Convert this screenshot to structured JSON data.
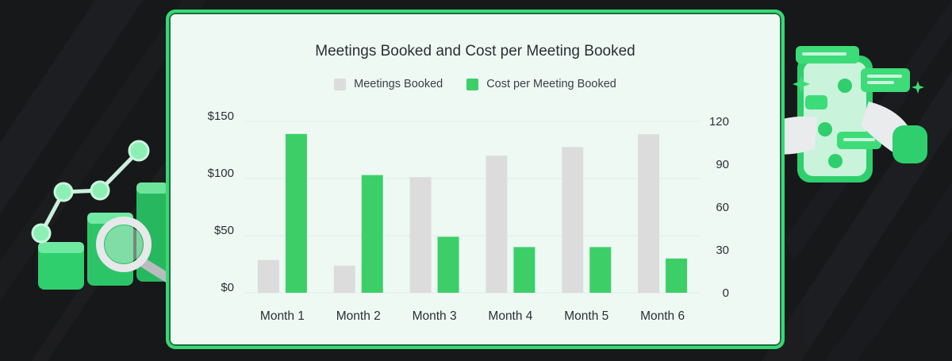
{
  "colors": {
    "background": "#17181a",
    "card_background": "#eef9f4",
    "card_border": "#39d874",
    "accent_green": "#3ccf68",
    "bar_gray": "#dcdcdc"
  },
  "chart_data": {
    "type": "bar",
    "title": "Meetings Booked and Cost per Meeting Booked",
    "categories": [
      "Month 1",
      "Month 2",
      "Month 3",
      "Month 4",
      "Month 5",
      "Month 6"
    ],
    "series": [
      {
        "name": "Meetings Booked",
        "axis": "right",
        "color": "#dcdcdc",
        "values": [
          23,
          19,
          81,
          96,
          102,
          111
        ]
      },
      {
        "name": "Cost per Meeting Booked",
        "axis": "left",
        "color": "#3ccf68",
        "values": [
          139,
          103,
          49,
          40,
          40,
          30
        ]
      }
    ],
    "left_axis": {
      "ticks": [
        "$150",
        "$100",
        "$50",
        "$0"
      ],
      "tick_values": [
        150,
        100,
        50,
        0
      ],
      "ylim": [
        0,
        150
      ]
    },
    "right_axis": {
      "ticks": [
        "120",
        "90",
        "60",
        "30",
        "0"
      ],
      "tick_values": [
        120,
        90,
        60,
        30,
        0
      ],
      "ylim": [
        0,
        120
      ]
    },
    "grid": true,
    "legend_position": "top-center"
  },
  "decor": {
    "left_icon": "chart-magnifier-icon",
    "right_icon": "phone-chat-hand-icon"
  }
}
